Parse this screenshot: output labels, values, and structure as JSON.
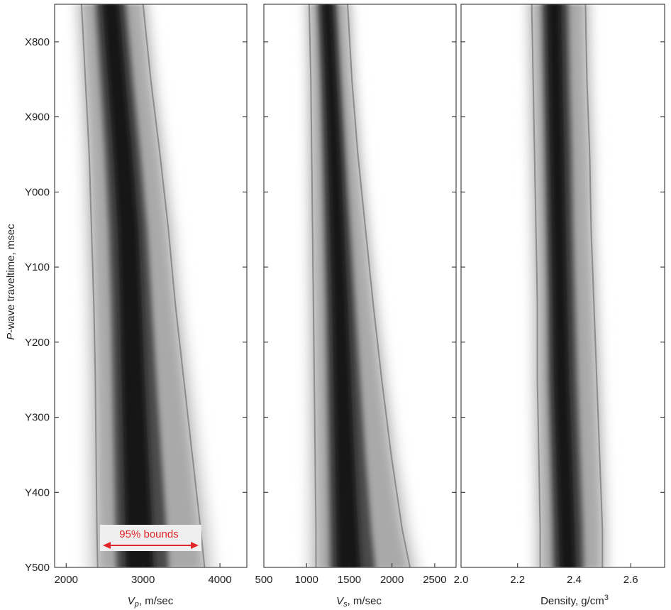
{
  "colors": {
    "density_dark": "#141414",
    "bound_line": "#8c8c8c",
    "annotation_red": "#e0262a",
    "annotation_box": "#efefef"
  },
  "chart_data": {
    "type": "heatmap",
    "y_axis": {
      "label": "P-wave traveltime, msec",
      "label_italic_prefix": "P",
      "label_rest": "-wave traveltime, msec",
      "ticks": [
        "X800",
        "X900",
        "Y000",
        "Y100",
        "Y200",
        "Y300",
        "Y400",
        "Y500"
      ],
      "range_ticks": [
        750,
        1500
      ],
      "tick_values": [
        800,
        900,
        1000,
        1100,
        1200,
        1300,
        1400,
        1500
      ],
      "inverted": true
    },
    "panels": [
      {
        "name": "Vp",
        "xlabel_symbol": "V",
        "xlabel_subscript": "p",
        "xlabel_unit": ", m/sec",
        "xticks": [
          2000,
          3000,
          4000
        ],
        "xtick_labels": [
          "2000",
          "3000",
          "4000"
        ],
        "xlim": [
          1850,
          4350
        ],
        "depth": [
          750,
          850,
          950,
          1050,
          1150,
          1250,
          1350,
          1450,
          1500
        ],
        "mode": [
          2600,
          2680,
          2760,
          2830,
          2860,
          2880,
          2910,
          2940,
          2950
        ],
        "lower_95": [
          2200,
          2250,
          2300,
          2330,
          2360,
          2380,
          2390,
          2400,
          2410
        ],
        "upper_95": [
          3000,
          3100,
          3220,
          3330,
          3420,
          3530,
          3640,
          3750,
          3800
        ],
        "annotation": "95% bounds"
      },
      {
        "name": "Vs",
        "xlabel_symbol": "V",
        "xlabel_subscript": "s",
        "xlabel_unit": ", m/sec",
        "xticks": [
          500,
          1000,
          1500,
          2000,
          2500
        ],
        "xtick_labels": [
          "500",
          "1000",
          "1500",
          "2000",
          "2500"
        ],
        "xlim": [
          500,
          2750
        ],
        "depth": [
          750,
          850,
          950,
          1050,
          1150,
          1250,
          1350,
          1450,
          1500
        ],
        "mode": [
          1250,
          1300,
          1340,
          1370,
          1400,
          1420,
          1440,
          1460,
          1470
        ],
        "lower_95": [
          1030,
          1050,
          1060,
          1070,
          1080,
          1090,
          1100,
          1110,
          1110
        ],
        "upper_95": [
          1480,
          1530,
          1600,
          1690,
          1780,
          1880,
          1990,
          2120,
          2210
        ]
      },
      {
        "name": "Density",
        "xlabel_text": "Density, g/cm",
        "xlabel_sup": "3",
        "xticks": [
          2.0,
          2.2,
          2.4,
          2.6
        ],
        "xtick_labels": [
          "2.0",
          "2.2",
          "2.4",
          "2.6"
        ],
        "xlim": [
          2.0,
          2.72
        ],
        "depth": [
          750,
          850,
          950,
          1050,
          1150,
          1250,
          1350,
          1450,
          1500
        ],
        "mode": [
          2.33,
          2.335,
          2.34,
          2.345,
          2.35,
          2.355,
          2.365,
          2.375,
          2.38
        ],
        "lower_95": [
          2.25,
          2.255,
          2.26,
          2.265,
          2.27,
          2.27,
          2.275,
          2.28,
          2.28
        ],
        "upper_95": [
          2.44,
          2.445,
          2.455,
          2.46,
          2.47,
          2.48,
          2.49,
          2.5,
          2.5
        ]
      }
    ]
  }
}
